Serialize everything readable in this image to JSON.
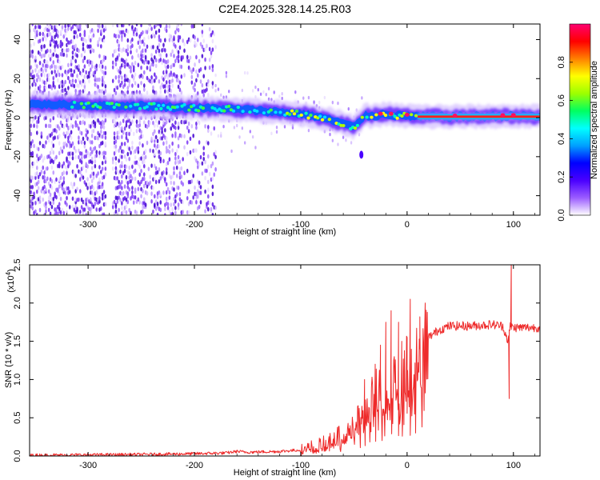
{
  "title": "C2E4.2025.328.14.25.R03",
  "chart_data": [
    {
      "type": "heatmap",
      "name": "spectrogram",
      "xlabel": "Height of straight line (km)",
      "ylabel": "Frequency (Hz)",
      "xlim": [
        -355,
        125
      ],
      "ylim": [
        -50,
        48
      ],
      "xticks": [
        -300,
        -200,
        -100,
        0,
        100
      ],
      "xtick_labels": [
        "-300",
        "-200",
        "-100",
        "0",
        "100"
      ],
      "yticks": [
        -40,
        -20,
        0,
        20,
        40
      ],
      "ytick_labels": [
        "-40",
        "-20",
        "0",
        "20",
        "40"
      ],
      "colorbar": {
        "label": "Normalized spectral amplitude",
        "range": [
          0,
          1
        ],
        "ticks": [
          0.0,
          0.2,
          0.4,
          0.6,
          0.8
        ],
        "tick_labels": [
          "0.0",
          "0.2",
          "0.4",
          "0.6",
          "0.8"
        ],
        "colormap": [
          "#ffffff",
          "#9b5cff",
          "#4a00ff",
          "#0000ff",
          "#00a0ff",
          "#00ffff",
          "#00ff60",
          "#9cff00",
          "#ffff00",
          "#ff8000",
          "#ff0000",
          "#ff0070"
        ]
      },
      "ridge": {
        "x": [
          -355,
          -280,
          -250,
          -200,
          -150,
          -100,
          -80,
          -60,
          -50,
          -40,
          -30,
          -20,
          -10,
          0,
          10,
          50,
          100,
          125
        ],
        "freq": [
          7,
          6,
          6,
          5,
          4,
          2,
          0,
          -3,
          -5,
          1,
          1,
          2,
          1,
          1,
          0.5,
          0.5,
          0.8,
          0.5
        ]
      }
    },
    {
      "type": "line",
      "name": "snr",
      "xlabel": "Height of straight line (km)",
      "ylabel": "SNR (10 * v/v)",
      "scale_label": "(x10",
      "scale_exponent": "4",
      "xlim": [
        -355,
        125
      ],
      "ylim": [
        0,
        2.5
      ],
      "xticks": [
        -300,
        -200,
        -100,
        0,
        100
      ],
      "xtick_labels": [
        "-300",
        "-200",
        "-100",
        "0",
        "100"
      ],
      "yticks": [
        0.0,
        0.5,
        1.0,
        1.5,
        2.0,
        2.5
      ],
      "ytick_labels": [
        "0.0",
        "0.5",
        "1.0",
        "1.5",
        "2.0",
        "2.5"
      ],
      "color": "#ee2a2a",
      "series": {
        "x": [
          -355,
          -250,
          -200,
          -170,
          -160,
          -150,
          -120,
          -100,
          -90,
          -80,
          -70,
          -60,
          -50,
          -40,
          -30,
          -25,
          -20,
          -15,
          -10,
          -5,
          0,
          5,
          10,
          15,
          20,
          25,
          30,
          40,
          60,
          80,
          90,
          95,
          97,
          100,
          110,
          125
        ],
        "y": [
          0.01,
          0.02,
          0.03,
          0.04,
          0.06,
          0.05,
          0.06,
          0.08,
          0.12,
          0.15,
          0.2,
          0.3,
          0.45,
          0.6,
          0.8,
          0.9,
          0.7,
          0.95,
          1.0,
          0.9,
          1.2,
          1.15,
          1.3,
          1.45,
          1.55,
          1.6,
          1.65,
          1.7,
          1.7,
          1.72,
          1.7,
          1.5,
          1.7,
          1.68,
          1.68,
          1.68
        ]
      },
      "spikes": {
        "x": [
          -40,
          -30,
          -25,
          -20,
          -15,
          -12,
          -8,
          -5,
          0,
          3,
          12,
          17,
          96,
          98
        ],
        "y": [
          1.0,
          1.2,
          1.45,
          1.75,
          1.9,
          1.3,
          1.75,
          1.5,
          1.55,
          2.05,
          1.4,
          2.0,
          0.75,
          2.55
        ]
      }
    }
  ]
}
